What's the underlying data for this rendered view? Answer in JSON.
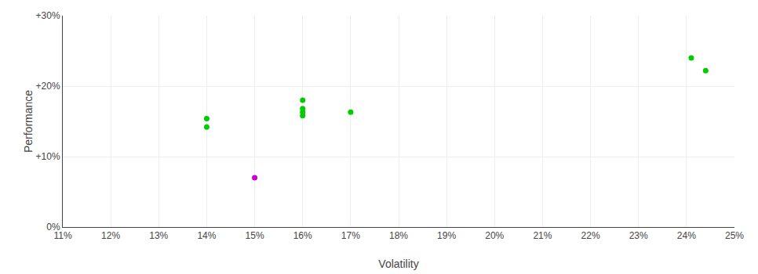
{
  "chart_data": {
    "type": "scatter",
    "xlabel": "Volatility",
    "ylabel": "Performance",
    "xlim": [
      0.11,
      0.25
    ],
    "ylim": [
      0.0,
      0.3
    ],
    "xticks": [
      {
        "value": 0.11,
        "label": "11%"
      },
      {
        "value": 0.12,
        "label": "12%"
      },
      {
        "value": 0.13,
        "label": "13%"
      },
      {
        "value": 0.14,
        "label": "14%"
      },
      {
        "value": 0.15,
        "label": "15%"
      },
      {
        "value": 0.16,
        "label": "16%"
      },
      {
        "value": 0.17,
        "label": "17%"
      },
      {
        "value": 0.18,
        "label": "18%"
      },
      {
        "value": 0.19,
        "label": "19%"
      },
      {
        "value": 0.2,
        "label": "20%"
      },
      {
        "value": 0.21,
        "label": "21%"
      },
      {
        "value": 0.22,
        "label": "22%"
      },
      {
        "value": 0.23,
        "label": "23%"
      },
      {
        "value": 0.24,
        "label": "24%"
      },
      {
        "value": 0.25,
        "label": "25%"
      }
    ],
    "yticks": [
      {
        "value": 0.0,
        "label": "0%"
      },
      {
        "value": 0.1,
        "label": "+10%"
      },
      {
        "value": 0.2,
        "label": "+20%"
      },
      {
        "value": 0.3,
        "label": "+30%"
      }
    ],
    "grid": true,
    "series": [
      {
        "color": "#00cc00",
        "x": [
          0.14,
          0.14,
          0.16,
          0.16,
          0.16,
          0.16,
          0.17,
          0.241,
          0.244
        ],
        "values": [
          0.154,
          0.142,
          0.18,
          0.168,
          0.163,
          0.158,
          0.163,
          0.24,
          0.222
        ]
      },
      {
        "color": "#cc00cc",
        "x": [
          0.15
        ],
        "values": [
          0.07
        ]
      }
    ]
  }
}
